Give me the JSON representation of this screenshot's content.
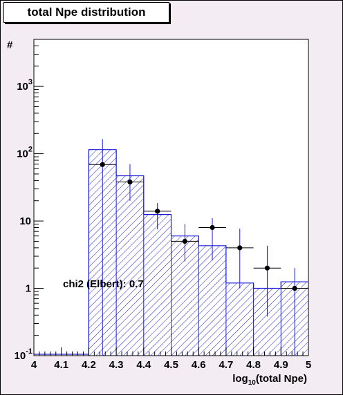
{
  "chart_data": {
    "type": "bar",
    "title": "total Npe distribution",
    "xlabel": "log10(total Npe)",
    "xlabel_main": "log",
    "xlabel_sub": "10",
    "xlabel_rest": "(total Npe)",
    "ylabel": "#",
    "yscale": "log",
    "xlim": [
      4.0,
      5.0
    ],
    "ylim": [
      0.1,
      5000
    ],
    "x_ticks": [
      "4",
      "4.1",
      "4.2",
      "4.3",
      "4.4",
      "4.5",
      "4.6",
      "4.7",
      "4.8",
      "4.9",
      "5"
    ],
    "y_ticks": [
      {
        "value": 0.1,
        "base": "10",
        "exp": "-1"
      },
      {
        "value": 1,
        "base": "1",
        "exp": ""
      },
      {
        "value": 10,
        "base": "10",
        "exp": ""
      },
      {
        "value": 100,
        "base": "10",
        "exp": "2"
      },
      {
        "value": 1000,
        "base": "10",
        "exp": "3"
      }
    ],
    "grid": false,
    "bin_edges": [
      4.0,
      4.1,
      4.2,
      4.3,
      4.4,
      4.5,
      4.6,
      4.7,
      4.8,
      4.9,
      5.0
    ],
    "series": [
      {
        "kind": "hatched-histogram",
        "values": [
          0,
          0,
          115,
          47,
          12.5,
          6,
          4.3,
          1.2,
          1.0,
          1.25
        ],
        "error_high": [
          0,
          0,
          0,
          0,
          0,
          0,
          0,
          0,
          0,
          0
        ]
      },
      {
        "kind": "points-with-errors",
        "x": [
          4.25,
          4.35,
          4.45,
          4.55,
          4.65,
          4.75,
          4.85,
          4.95
        ],
        "y": [
          69,
          38,
          14,
          5,
          8,
          4,
          2,
          1
        ],
        "y_low": [
          0,
          20,
          7.5,
          2.5,
          2.6,
          1.0,
          0.38,
          0.1
        ],
        "y_high": [
          165,
          70,
          18.5,
          9,
          11,
          7.7,
          4.3,
          2.0
        ]
      }
    ],
    "annotation": "chi2 (Elbert): 0.7"
  },
  "colors": {
    "background": "#f3edf3",
    "plot_area": "#ffffff",
    "histogram": "#1b1bd9",
    "points": "#000000"
  }
}
